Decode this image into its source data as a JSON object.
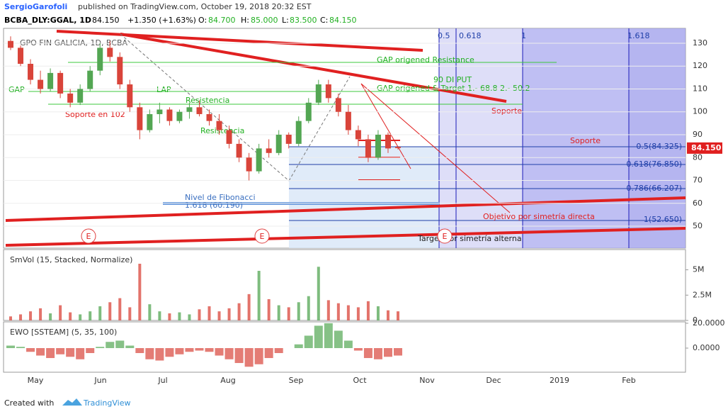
{
  "header": {
    "author": "SergioGarofoli",
    "published": "published on TradingView.com, October 19, 2018 20:32 EST",
    "symbol": "BCBA_DLY:GGAL, 1D",
    "last": "84.150",
    "change": "+1.350 (+1.63%)",
    "o_label": "O:",
    "o": "84.700",
    "h_label": "H:",
    "h": "85.000",
    "l_label": "L:",
    "l": "83.500",
    "c_label": "C:",
    "c": "84.150"
  },
  "watermark": "GPO FIN GALICIA, 1D, BCBA",
  "annotations": {
    "gap": "GAP",
    "soporte102": "Soporte en 102",
    "lap": "LAP",
    "resistencia1": "Resistencia",
    "resistencia2": "Resistencia",
    "gap_resist": "GAP origened Resistance",
    "di_put": "90 DI PUT",
    "gap_target": "GAP origened & Target 1.- 68.8  2.- 50.2",
    "soporte1": "Soporte",
    "soporte2": "Soporte",
    "fib_nivel": "Nivel de Fibonacci",
    "fib_nivel_val": "1.618 (60.190)",
    "objetivo": "Objetivo por simetría directa",
    "target_alt": "Target por simetría alterna",
    "fib_05": "0.5(84.325)",
    "fib_0618": "0.618(76.850)",
    "fib_0786": "0.786(66.207)",
    "fib_1": "1(52.650)",
    "t05": "0.5",
    "t0618": "0.618",
    "t1": "1",
    "t1618": "1.618",
    "e1": "E",
    "e2": "E",
    "e3": "E"
  },
  "chart_data": [
    {
      "type": "candlestick",
      "ylim": [
        40.4,
        136.5
      ],
      "yticks": [
        50,
        60,
        70,
        80,
        90,
        100,
        110,
        120,
        130
      ],
      "last_label": "84.150",
      "up_color": "#53a653",
      "down_color": "#d9443a",
      "open": [
        131,
        128,
        121,
        114,
        110,
        117,
        108,
        104,
        110,
        118,
        128,
        124,
        112,
        102,
        92,
        99,
        101,
        96,
        100,
        102,
        99,
        96,
        92,
        86,
        80,
        74,
        84,
        82,
        90,
        86,
        96,
        104,
        112,
        106,
        100,
        92,
        88,
        80,
        90,
        84.7
      ],
      "high": [
        133,
        129,
        123,
        118,
        119,
        118,
        110,
        112,
        120,
        130,
        131,
        126,
        114,
        104,
        101,
        104,
        102,
        101,
        104,
        105,
        101,
        99,
        94,
        88,
        82,
        86,
        88,
        92,
        91,
        98,
        106,
        114,
        114,
        108,
        103,
        94,
        90,
        92,
        91,
        85
      ],
      "low": [
        127,
        120,
        112,
        108,
        109,
        106,
        102,
        103,
        109,
        116,
        122,
        110,
        100,
        88,
        91,
        95,
        94,
        95,
        97,
        98,
        94,
        90,
        84,
        78,
        70,
        73,
        80,
        81,
        84,
        85,
        95,
        103,
        104,
        98,
        90,
        85,
        78,
        79,
        82,
        83.5
      ],
      "close": [
        128,
        121,
        114,
        110,
        117,
        108,
        104,
        110,
        118,
        128,
        124,
        112,
        102,
        92,
        99,
        101,
        96,
        100,
        102,
        99,
        96,
        92,
        86,
        80,
        74,
        84,
        82,
        90,
        86,
        96,
        104,
        112,
        106,
        100,
        92,
        88,
        80,
        90,
        84,
        84.15
      ],
      "xticks": [
        "May",
        "Jun",
        "Jul",
        "Aug",
        "Sep",
        "Oct",
        "Nov",
        "Dec",
        "2019",
        "Feb"
      ]
    },
    {
      "type": "bar",
      "legend": "SmVol (15, Stacked, Normalize)",
      "ylim": [
        0,
        7000000
      ],
      "yticks": [
        {
          "value": 0,
          "label": "0"
        },
        {
          "value": 2500000,
          "label": "2.5M"
        },
        {
          "value": 5000000,
          "label": "5M"
        }
      ],
      "values": [
        400000,
        600000,
        900000,
        1200000,
        700000,
        1500000,
        800000,
        600000,
        900000,
        1400000,
        1800000,
        2200000,
        1300000,
        5600000,
        1600000,
        900000,
        700000,
        800000,
        600000,
        1100000,
        1400000,
        900000,
        1200000,
        1700000,
        2600000,
        4900000,
        2100000,
        1500000,
        1300000,
        1800000,
        2400000,
        5300000,
        2000000,
        1700000,
        1500000,
        1300000,
        1900000,
        1400000,
        1000000,
        900000
      ]
    },
    {
      "type": "bar",
      "legend": "EWO [SSTEAM] (5, 35, 100)",
      "ylim": [
        -19.4,
        21.1
      ],
      "yticks": [
        {
          "value": 0,
          "label": "0.0000"
        },
        {
          "value": 20,
          "label": "20.0000"
        }
      ],
      "values": [
        2,
        1,
        -3,
        -6,
        -8,
        -5,
        -7,
        -9,
        -4,
        1,
        5,
        6,
        2,
        -4,
        -9,
        -10,
        -7,
        -5,
        -3,
        -2,
        -3,
        -6,
        -9,
        -12,
        -15,
        -13,
        -8,
        -4,
        0,
        3,
        10,
        18,
        20,
        14,
        6,
        -2,
        -8,
        -9,
        -7,
        -6
      ]
    }
  ],
  "footer": {
    "created": "Created with",
    "brand": "TradingView"
  }
}
